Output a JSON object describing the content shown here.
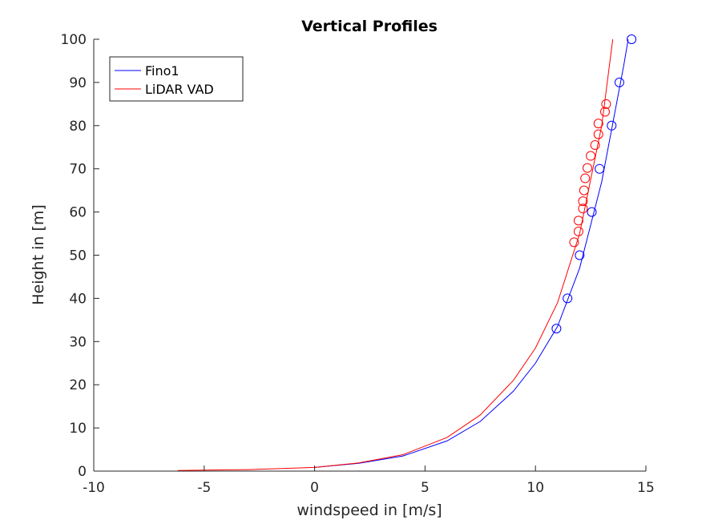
{
  "chart_data": {
    "type": "line",
    "title": "Vertical Profiles",
    "xlabel": "windspeed in [m/s]",
    "ylabel": "Height in [m]",
    "xlim": [
      -10,
      15
    ],
    "ylim": [
      0,
      100
    ],
    "xticks": [
      "-10",
      "-5",
      "0",
      "5",
      "10",
      "15"
    ],
    "yticks": [
      "0",
      "10",
      "20",
      "30",
      "40",
      "50",
      "60",
      "70",
      "80",
      "90",
      "100"
    ],
    "grid": false,
    "legend_position": "top-left",
    "series": [
      {
        "name": "Fino1",
        "color": "#0000ff",
        "marker": "circle",
        "points": [
          {
            "x": 10.95,
            "y": 33
          },
          {
            "x": 11.45,
            "y": 40
          },
          {
            "x": 12.0,
            "y": 50
          },
          {
            "x": 12.55,
            "y": 60
          },
          {
            "x": 12.9,
            "y": 70
          },
          {
            "x": 13.45,
            "y": 80
          },
          {
            "x": 13.8,
            "y": 90
          },
          {
            "x": 14.35,
            "y": 100
          }
        ],
        "fit": [
          {
            "x": 0.0,
            "y": 0.85
          },
          {
            "x": 2.0,
            "y": 1.8
          },
          {
            "x": 4.0,
            "y": 3.5
          },
          {
            "x": 6.0,
            "y": 7.0
          },
          {
            "x": 7.5,
            "y": 11.5
          },
          {
            "x": 9.0,
            "y": 18.5
          },
          {
            "x": 10.0,
            "y": 25.0
          },
          {
            "x": 11.0,
            "y": 33.5
          },
          {
            "x": 12.0,
            "y": 47.0
          },
          {
            "x": 13.0,
            "y": 67.0
          },
          {
            "x": 14.0,
            "y": 94.0
          },
          {
            "x": 14.2,
            "y": 100.0
          }
        ]
      },
      {
        "name": "LiDAR VAD",
        "color": "#ff0000",
        "marker": "circle",
        "points": [
          {
            "x": 11.75,
            "y": 53
          },
          {
            "x": 11.95,
            "y": 55.5
          },
          {
            "x": 11.95,
            "y": 58
          },
          {
            "x": 12.15,
            "y": 60.8
          },
          {
            "x": 12.15,
            "y": 62.5
          },
          {
            "x": 12.2,
            "y": 65
          },
          {
            "x": 12.25,
            "y": 67.8
          },
          {
            "x": 12.35,
            "y": 70.2
          },
          {
            "x": 12.5,
            "y": 73
          },
          {
            "x": 12.7,
            "y": 75.5
          },
          {
            "x": 12.85,
            "y": 78
          },
          {
            "x": 12.85,
            "y": 80.5
          },
          {
            "x": 13.15,
            "y": 83.2
          },
          {
            "x": 13.2,
            "y": 85
          }
        ],
        "fit": [
          {
            "x": -6.2,
            "y": 0.15
          },
          {
            "x": -3.0,
            "y": 0.35
          },
          {
            "x": 0.0,
            "y": 0.85
          },
          {
            "x": 2.0,
            "y": 1.9
          },
          {
            "x": 4.0,
            "y": 3.8
          },
          {
            "x": 6.0,
            "y": 7.8
          },
          {
            "x": 7.5,
            "y": 13.0
          },
          {
            "x": 9.0,
            "y": 21.0
          },
          {
            "x": 10.0,
            "y": 28.5
          },
          {
            "x": 11.0,
            "y": 39.0
          },
          {
            "x": 12.0,
            "y": 55.0
          },
          {
            "x": 13.0,
            "y": 80.0
          },
          {
            "x": 13.5,
            "y": 100.0
          }
        ]
      }
    ]
  }
}
